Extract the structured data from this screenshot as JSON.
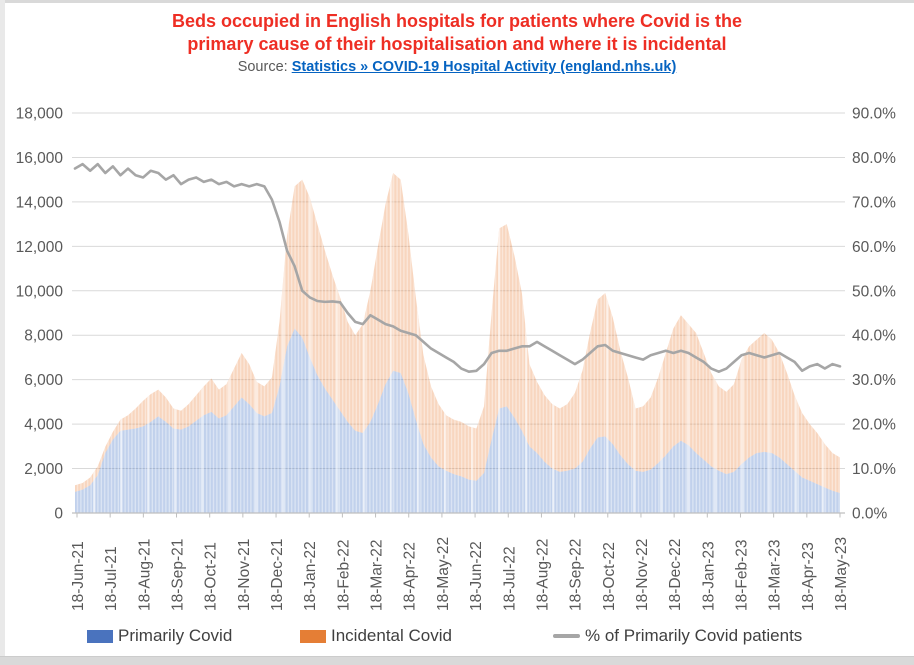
{
  "title": {
    "line1": "Beds occupied in English hospitals for patients where Covid is the",
    "line2": "primary cause of their hospitalisation and where it is incidental",
    "color": "#ee2e24"
  },
  "source": {
    "prefix": "Source: ",
    "link_text": "Statistics » COVID-19 Hospital Activity (england.nhs.uk)",
    "link_color": "#0563c1"
  },
  "legend": {
    "items": [
      {
        "label": "Primarily Covid",
        "swatch": "rect",
        "color": "#4a73be"
      },
      {
        "label": "Incidental Covid",
        "swatch": "rect",
        "color": "#e57e35"
      },
      {
        "label": "% of Primarily Covid patients",
        "swatch": "line",
        "color": "#a6a6a6"
      }
    ]
  },
  "chart_data": {
    "type": "area",
    "subtype": "stacked-daily-bars-with-percent-line",
    "title": "Beds occupied in English hospitals for patients where Covid is the primary cause of their hospitalisation and where it is incidental",
    "grid": "horizontal-only",
    "x": {
      "start_label": "18-Jun-21",
      "end_label": "26-May-23",
      "sampling": "weekly",
      "tick_labels": [
        "18-Jun-21",
        "18-Jul-21",
        "18-Aug-21",
        "18-Sep-21",
        "18-Oct-21",
        "18-Nov-21",
        "18-Dec-21",
        "18-Jan-22",
        "18-Feb-22",
        "18-Mar-22",
        "18-Apr-22",
        "18-May-22",
        "18-Jun-22",
        "18-Jul-22",
        "18-Aug-22",
        "18-Sep-22",
        "18-Oct-22",
        "18-Nov-22",
        "18-Dec-22",
        "18-Jan-23",
        "18-Feb-23",
        "18-Mar-23",
        "18-Apr-23",
        "18-May-23"
      ]
    },
    "y_left": {
      "min": 0,
      "max": 18000,
      "step": 2000,
      "tick_labels": [
        "18,000",
        "16,000",
        "14,000",
        "12,000",
        "10,000",
        "8,000",
        "6,000",
        "4,000",
        "2,000",
        "0"
      ]
    },
    "y_right": {
      "min": 0,
      "max": 90,
      "step": 10,
      "tick_labels": [
        "90.0%",
        "80.0%",
        "70.0%",
        "60.0%",
        "50.0%",
        "40.0%",
        "30.0%",
        "20.0%",
        "10.0%",
        "0.0%"
      ]
    },
    "series": [
      {
        "name": "Primarily Covid",
        "axis": "left",
        "stack": 1,
        "color": "#4472c4",
        "fill": "rgba(68,114,196,0.33)",
        "values": [
          950,
          1050,
          1250,
          1700,
          2700,
          3300,
          3700,
          3750,
          3800,
          3900,
          4100,
          4350,
          4100,
          3800,
          3750,
          3900,
          4150,
          4400,
          4550,
          4250,
          4400,
          4800,
          5200,
          4900,
          4500,
          4350,
          4500,
          5700,
          7500,
          8300,
          7900,
          7000,
          6200,
          5600,
          5100,
          4600,
          4100,
          3700,
          3600,
          4100,
          4900,
          5800,
          6400,
          6300,
          5400,
          4200,
          3100,
          2500,
          2100,
          1900,
          1750,
          1650,
          1500,
          1450,
          1800,
          3300,
          4700,
          4800,
          4300,
          3700,
          3000,
          2700,
          2300,
          2000,
          1850,
          1900,
          2000,
          2300,
          2900,
          3400,
          3450,
          3100,
          2600,
          2200,
          1900,
          1850,
          1950,
          2250,
          2600,
          3000,
          3250,
          3050,
          2700,
          2400,
          2100,
          1900,
          1750,
          1850,
          2200,
          2500,
          2700,
          2750,
          2700,
          2500,
          2200,
          1900,
          1600,
          1450,
          1300,
          1150,
          1000,
          900
        ]
      },
      {
        "name": "Incidental Covid",
        "axis": "left",
        "stack": 2,
        "color": "#ed7d31",
        "fill": "rgba(232,119,44,0.30)",
        "values": [
          300,
          300,
          350,
          400,
          280,
          350,
          500,
          650,
          900,
          1150,
          1250,
          1200,
          1100,
          900,
          850,
          1000,
          1150,
          1300,
          1500,
          1300,
          1400,
          1700,
          2000,
          1800,
          1400,
          1350,
          1600,
          2900,
          5000,
          6400,
          7100,
          7200,
          6800,
          6200,
          5600,
          5100,
          4500,
          4300,
          4900,
          5900,
          7100,
          8100,
          8900,
          8700,
          7200,
          5500,
          4000,
          3200,
          2800,
          2500,
          2450,
          2450,
          2400,
          2350,
          3000,
          5700,
          8100,
          8200,
          7300,
          6200,
          3700,
          3200,
          3000,
          2900,
          2850,
          3000,
          3400,
          4100,
          5200,
          6200,
          6450,
          5700,
          4700,
          3900,
          2800,
          2950,
          3250,
          3850,
          4600,
          5300,
          5650,
          5450,
          5400,
          4800,
          4200,
          3800,
          3700,
          3950,
          4700,
          5000,
          5100,
          5350,
          5100,
          4700,
          4100,
          3400,
          2900,
          2550,
          2300,
          1950,
          1700,
          1600
        ]
      },
      {
        "name": "% of Primarily Covid patients",
        "axis": "right",
        "stack": 0,
        "color": "#a6a6a6",
        "values": [
          77.5,
          78.5,
          77.0,
          78.5,
          76.5,
          78.0,
          76.0,
          77.5,
          76.0,
          75.5,
          77.0,
          76.5,
          75.0,
          76.0,
          74.0,
          75.0,
          75.5,
          74.5,
          75.0,
          74.0,
          74.5,
          73.5,
          74.0,
          73.5,
          74.0,
          73.5,
          70.5,
          65.5,
          59.0,
          55.5,
          50.0,
          48.5,
          47.7,
          47.5,
          47.6,
          47.4,
          45.0,
          43.0,
          42.5,
          44.5,
          43.5,
          42.5,
          42.0,
          41.0,
          40.5,
          40.0,
          38.5,
          37.0,
          36.0,
          35.0,
          34.0,
          32.5,
          31.8,
          32.0,
          33.5,
          36.0,
          36.5,
          36.5,
          37.0,
          37.5,
          37.5,
          38.5,
          37.5,
          36.5,
          35.5,
          34.5,
          33.5,
          34.5,
          36.0,
          37.5,
          37.8,
          36.5,
          36.0,
          35.5,
          35.0,
          34.5,
          35.5,
          36.0,
          36.5,
          36.0,
          36.5,
          36.0,
          35.0,
          34.0,
          32.5,
          31.8,
          32.5,
          34.0,
          35.5,
          36.0,
          35.5,
          35.0,
          35.5,
          36.0,
          35.0,
          34.0,
          32.0,
          33.0,
          33.5,
          32.5,
          33.5,
          33.0
        ]
      }
    ],
    "style": {
      "gridline_color": "#d9d9d9",
      "axis_color": "#bfbfbf",
      "axis_label_color": "#595959",
      "line_width": 2.6
    }
  }
}
